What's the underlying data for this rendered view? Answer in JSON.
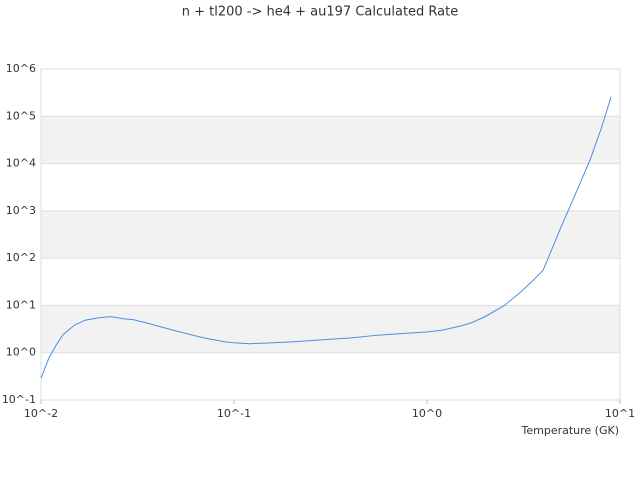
{
  "chart_data": {
    "type": "line",
    "title": "n + tl200 -> he4 + au197 Calculated Rate",
    "x_label": "Temperature (GK)",
    "x": [
      0.01,
      0.011,
      0.012,
      0.013,
      0.015,
      0.017,
      0.02,
      0.023,
      0.027,
      0.03,
      0.035,
      0.04,
      0.05,
      0.06,
      0.07,
      0.08,
      0.09,
      0.1,
      0.12,
      0.15,
      0.2,
      0.25,
      0.3,
      0.4,
      0.5,
      0.6,
      0.7,
      0.8,
      1,
      1.2,
      1.5,
      1.7,
      2,
      2.5,
      3,
      3.5,
      4,
      5,
      6,
      7,
      8,
      9
    ],
    "series": [
      {
        "color": "#4a90e2",
        "values": [
          0.29,
          0.78,
          1.46,
          2.4,
          3.9,
          4.9,
          5.5,
          5.8,
          5.2,
          5.0,
          4.3,
          3.7,
          2.9,
          2.4,
          2.05,
          1.86,
          1.7,
          1.62,
          1.55,
          1.6,
          1.7,
          1.8,
          1.9,
          2.05,
          2.25,
          2.4,
          2.5,
          2.6,
          2.75,
          3.0,
          3.7,
          4.3,
          5.8,
          9.8,
          18,
          32,
          56,
          500,
          2750,
          12000,
          56000,
          260000
        ]
      }
    ],
    "xscale": "log",
    "yscale": "log",
    "xlim": [
      0.01,
      10
    ],
    "ylim": [
      0.1,
      1000000
    ],
    "xticks": [
      {
        "value": 0.01,
        "label": "10^-2"
      },
      {
        "value": 0.1,
        "label": "10^-1"
      },
      {
        "value": 1,
        "label": "10^0"
      },
      {
        "value": 10,
        "label": "10^1"
      }
    ],
    "yticks": [
      {
        "value": 0.1,
        "label": "10^-1"
      },
      {
        "value": 1,
        "label": "10^0"
      },
      {
        "value": 10,
        "label": "10^1"
      },
      {
        "value": 100,
        "label": "10^2"
      },
      {
        "value": 1000,
        "label": "10^3"
      },
      {
        "value": 10000,
        "label": "10^4"
      },
      {
        "value": 100000,
        "label": "10^5"
      },
      {
        "value": 1000000,
        "label": "10^6"
      }
    ],
    "grid": "banded"
  }
}
